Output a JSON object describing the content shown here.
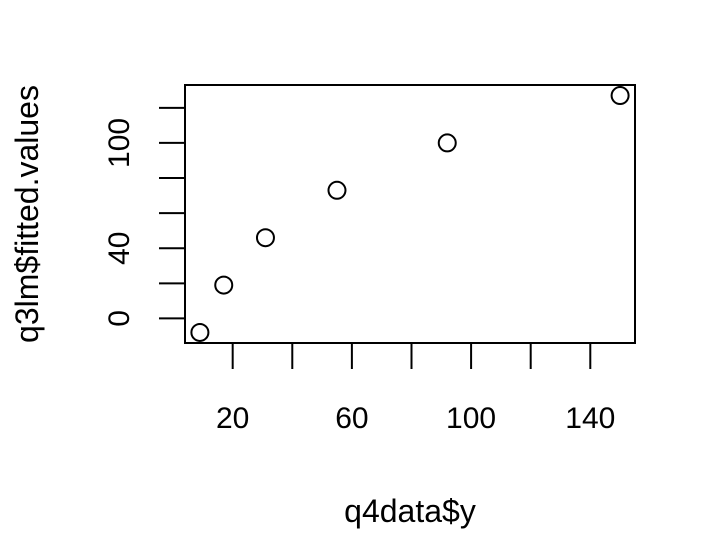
{
  "chart_data": {
    "type": "scatter",
    "xlabel": "q4data$y",
    "ylabel": "q3lm$fitted.values",
    "xlim": [
      4,
      155
    ],
    "ylim": [
      -14,
      133
    ],
    "x_ticks": [
      20,
      40,
      60,
      80,
      100,
      120,
      140
    ],
    "x_tick_labels": [
      "20",
      "60",
      "100",
      "140"
    ],
    "x_tick_label_values": [
      20,
      60,
      100,
      140
    ],
    "y_ticks": [
      0,
      20,
      40,
      60,
      80,
      100,
      120
    ],
    "y_tick_labels": [
      "0",
      "40",
      "100"
    ],
    "y_tick_label_values": [
      0,
      40,
      100
    ],
    "grid": false,
    "marker": "open-circle",
    "points": [
      {
        "x": 9,
        "y": -8
      },
      {
        "x": 17,
        "y": 19
      },
      {
        "x": 31,
        "y": 46
      },
      {
        "x": 55,
        "y": 73
      },
      {
        "x": 92,
        "y": 100
      },
      {
        "x": 150,
        "y": 127
      }
    ]
  }
}
